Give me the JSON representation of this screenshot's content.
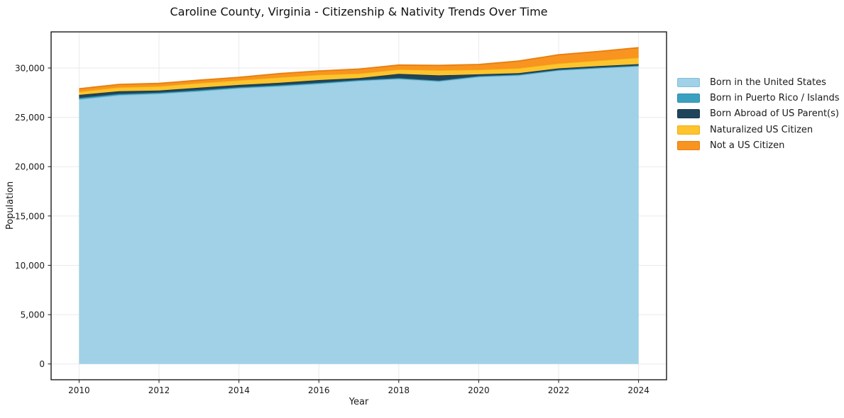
{
  "chart": {
    "title": "Caroline County, Virginia - Citizenship & Nativity Trends Over Time",
    "xlabel": "Year",
    "ylabel": "Population"
  },
  "chart_data": {
    "type": "area",
    "stacked": true,
    "title": "Caroline County, Virginia - Citizenship & Nativity Trends Over Time",
    "xlabel": "Year",
    "ylabel": "Population",
    "x": [
      2010,
      2011,
      2012,
      2013,
      2014,
      2015,
      2016,
      2017,
      2018,
      2019,
      2020,
      2021,
      2022,
      2023,
      2024
    ],
    "series": [
      {
        "name": "Born in the United States",
        "fill": "#a0d1e7",
        "edge": "#85bfda",
        "values": [
          26820,
          27250,
          27400,
          27650,
          27950,
          28150,
          28400,
          28700,
          28900,
          28650,
          29100,
          29250,
          29750,
          29980,
          30180
        ]
      },
      {
        "name": "Born in Puerto Rico / Islands",
        "fill": "#3aa2c0",
        "edge": "#2e8daa",
        "values": [
          150,
          120,
          100,
          100,
          100,
          100,
          100,
          80,
          80,
          80,
          80,
          80,
          70,
          70,
          70
        ]
      },
      {
        "name": "Born Abroad of US Parent(s)",
        "fill": "#20455a",
        "edge": "#16384b",
        "values": [
          300,
          280,
          220,
          250,
          230,
          250,
          280,
          200,
          420,
          520,
          180,
          140,
          140,
          150,
          140
        ]
      },
      {
        "name": "Naturalized US Citizen",
        "fill": "#fdc42f",
        "edge": "#f0ab10",
        "values": [
          340,
          400,
          440,
          480,
          490,
          560,
          540,
          470,
          470,
          530,
          480,
          520,
          520,
          570,
          670
        ]
      },
      {
        "name": "Not a US Citizen",
        "fill": "#f8941f",
        "edge": "#e77f0e",
        "values": [
          280,
          290,
          280,
          280,
          290,
          370,
          380,
          440,
          430,
          480,
          520,
          710,
          860,
          910,
          1000
        ]
      }
    ],
    "xlim": [
      2009.3,
      2024.7
    ],
    "ylim": [
      -1600,
      33660
    ],
    "x_ticks": {
      "values": [
        2010,
        2012,
        2014,
        2016,
        2018,
        2020,
        2022,
        2024
      ],
      "labels": [
        "2010",
        "2012",
        "2014",
        "2016",
        "2018",
        "2020",
        "2022",
        "2024"
      ]
    },
    "y_ticks": {
      "values": [
        0,
        5000,
        10000,
        15000,
        20000,
        25000,
        30000
      ],
      "labels": [
        "0",
        "5,000",
        "10,000",
        "15,000",
        "20,000",
        "25,000",
        "30,000"
      ]
    },
    "grid": true,
    "grid_color": "#eaeaef",
    "spine_color": "#1a1a1a",
    "tick_label_color": "#1a1a1a",
    "legend_position": "right-outside"
  }
}
